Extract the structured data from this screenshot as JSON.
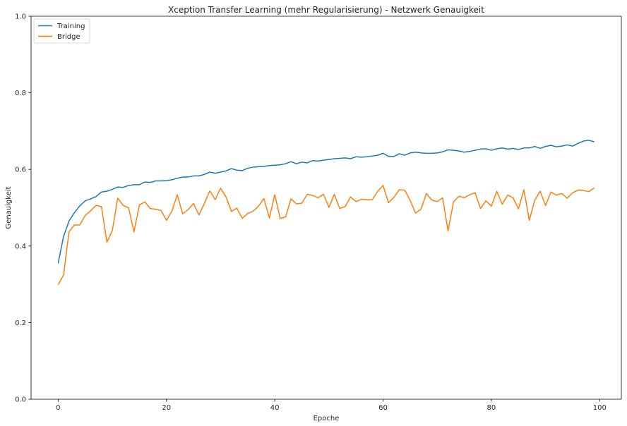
{
  "chart_data": {
    "type": "line",
    "title": "Xception Transfer Learning (mehr Regularisierung) - Netzwerk Genauigkeit",
    "xlabel": "Epoche",
    "ylabel": "Genauigkeit",
    "xlim": [
      -5,
      104
    ],
    "ylim": [
      0.0,
      1.0
    ],
    "x_ticks": [
      0,
      20,
      40,
      60,
      80,
      100
    ],
    "y_ticks": [
      0.0,
      0.2,
      0.4,
      0.6,
      0.8,
      1.0
    ],
    "y_tick_labels": [
      "0.0",
      "0.2",
      "0.4",
      "0.6",
      "0.8",
      "1.0"
    ],
    "grid": false,
    "legend_position": "top-left",
    "x": [
      0,
      1,
      2,
      3,
      4,
      5,
      6,
      7,
      8,
      9,
      10,
      11,
      12,
      13,
      14,
      15,
      16,
      17,
      18,
      19,
      20,
      21,
      22,
      23,
      24,
      25,
      26,
      27,
      28,
      29,
      30,
      31,
      32,
      33,
      34,
      35,
      36,
      37,
      38,
      39,
      40,
      41,
      42,
      43,
      44,
      45,
      46,
      47,
      48,
      49,
      50,
      51,
      52,
      53,
      54,
      55,
      56,
      57,
      58,
      59,
      60,
      61,
      62,
      63,
      64,
      65,
      66,
      67,
      68,
      69,
      70,
      71,
      72,
      73,
      74,
      75,
      76,
      77,
      78,
      79,
      80,
      81,
      82,
      83,
      84,
      85,
      86,
      87,
      88,
      89,
      90,
      91,
      92,
      93,
      94,
      95,
      96,
      97,
      98,
      99
    ],
    "series": [
      {
        "name": "Training",
        "color": "#1f77b4",
        "values": [
          0.355,
          0.425,
          0.465,
          0.487,
          0.505,
          0.518,
          0.523,
          0.529,
          0.541,
          0.543,
          0.548,
          0.554,
          0.553,
          0.558,
          0.56,
          0.56,
          0.567,
          0.566,
          0.57,
          0.57,
          0.571,
          0.573,
          0.577,
          0.58,
          0.58,
          0.583,
          0.583,
          0.587,
          0.593,
          0.59,
          0.593,
          0.596,
          0.602,
          0.598,
          0.597,
          0.603,
          0.606,
          0.607,
          0.608,
          0.61,
          0.611,
          0.612,
          0.615,
          0.62,
          0.615,
          0.619,
          0.617,
          0.623,
          0.622,
          0.624,
          0.626,
          0.628,
          0.629,
          0.63,
          0.628,
          0.633,
          0.632,
          0.633,
          0.635,
          0.637,
          0.642,
          0.634,
          0.634,
          0.641,
          0.637,
          0.643,
          0.645,
          0.643,
          0.642,
          0.642,
          0.643,
          0.646,
          0.651,
          0.65,
          0.648,
          0.645,
          0.647,
          0.65,
          0.653,
          0.654,
          0.65,
          0.654,
          0.656,
          0.653,
          0.655,
          0.652,
          0.656,
          0.656,
          0.66,
          0.655,
          0.66,
          0.663,
          0.659,
          0.661,
          0.664,
          0.661,
          0.668,
          0.674,
          0.676,
          0.672
        ]
      },
      {
        "name": "Bridge",
        "color": "#ff7f0e",
        "values": [
          0.299,
          0.324,
          0.437,
          0.455,
          0.455,
          0.48,
          0.492,
          0.506,
          0.503,
          0.41,
          0.44,
          0.525,
          0.506,
          0.5,
          0.437,
          0.507,
          0.515,
          0.498,
          0.496,
          0.493,
          0.467,
          0.491,
          0.534,
          0.484,
          0.495,
          0.511,
          0.481,
          0.511,
          0.544,
          0.521,
          0.551,
          0.528,
          0.49,
          0.499,
          0.472,
          0.485,
          0.491,
          0.504,
          0.524,
          0.473,
          0.534,
          0.472,
          0.476,
          0.523,
          0.51,
          0.512,
          0.535,
          0.532,
          0.526,
          0.535,
          0.501,
          0.535,
          0.498,
          0.503,
          0.528,
          0.516,
          0.522,
          0.521,
          0.521,
          0.543,
          0.558,
          0.513,
          0.527,
          0.547,
          0.546,
          0.519,
          0.486,
          0.496,
          0.537,
          0.52,
          0.516,
          0.526,
          0.439,
          0.515,
          0.53,
          0.526,
          0.534,
          0.539,
          0.498,
          0.518,
          0.504,
          0.543,
          0.509,
          0.533,
          0.526,
          0.497,
          0.547,
          0.467,
          0.519,
          0.543,
          0.506,
          0.541,
          0.533,
          0.537,
          0.525,
          0.539,
          0.546,
          0.545,
          0.542,
          0.552
        ]
      }
    ]
  }
}
